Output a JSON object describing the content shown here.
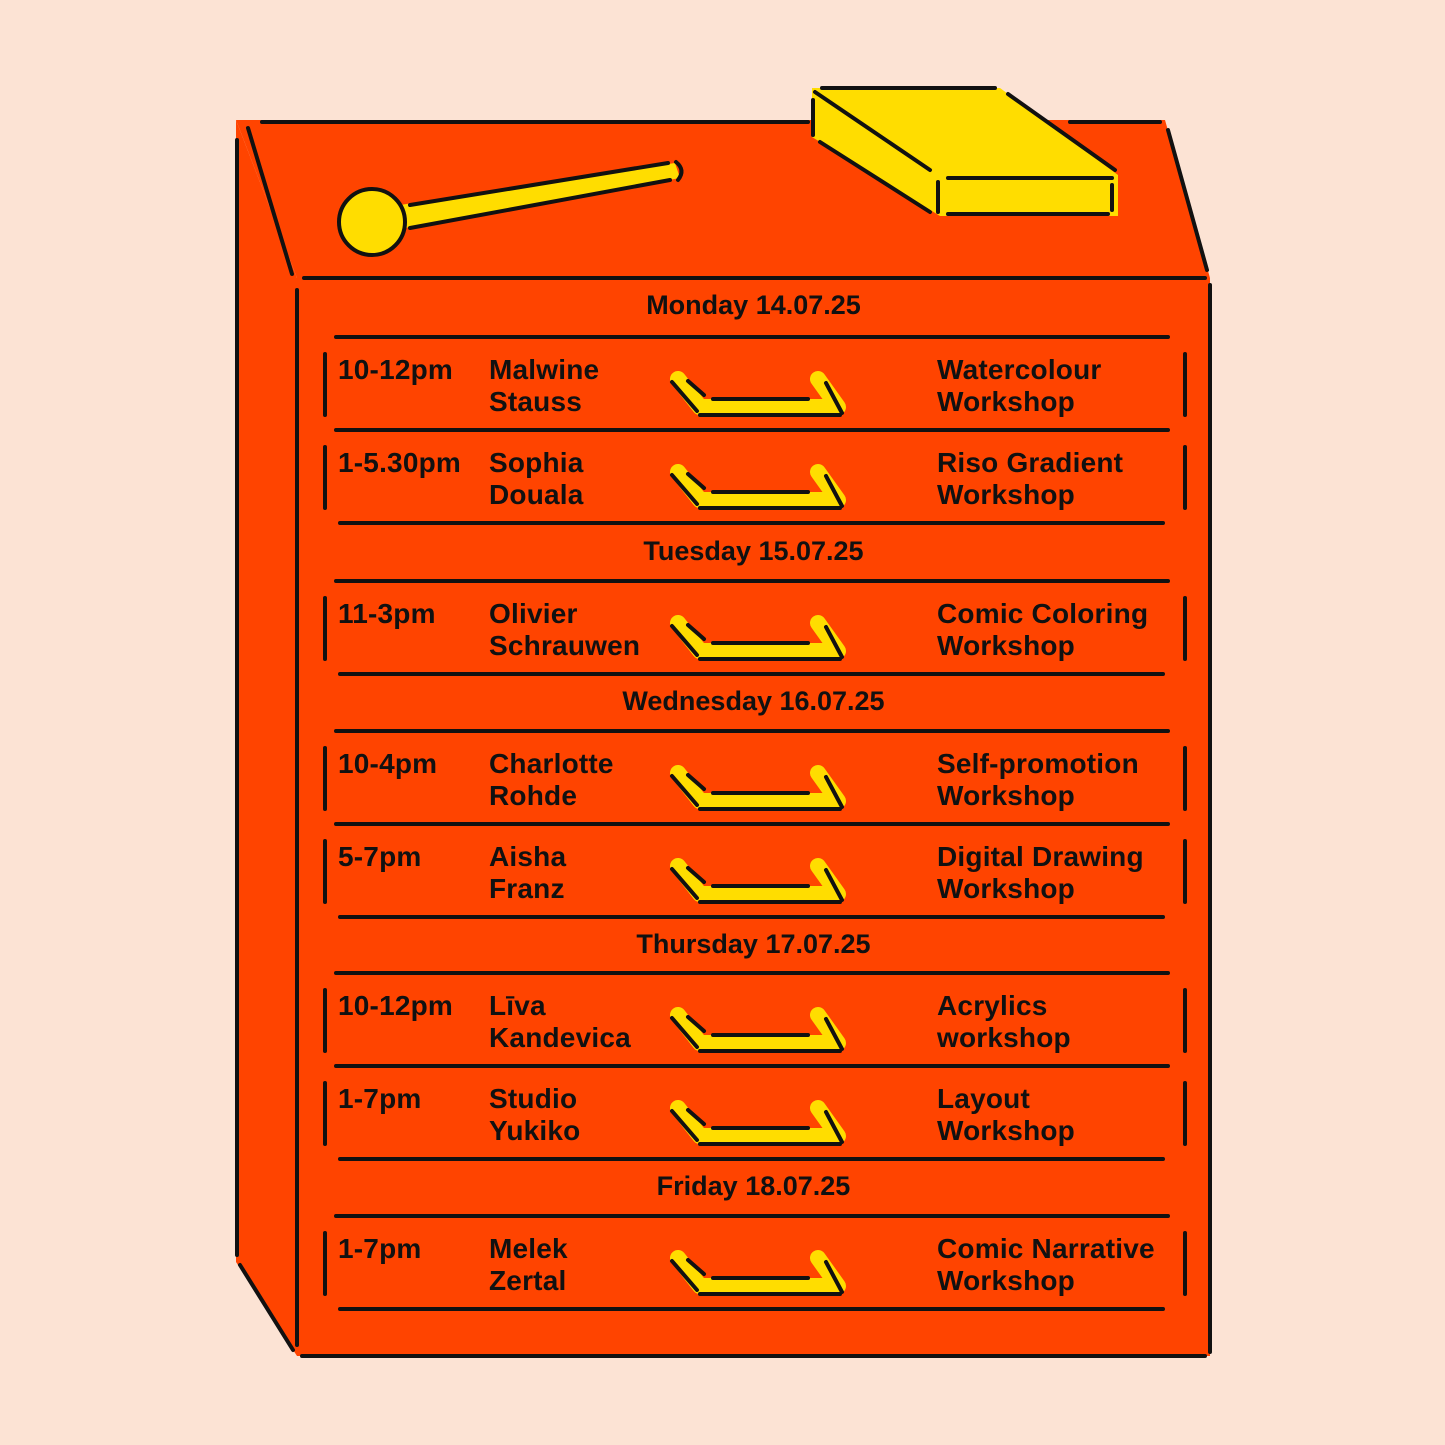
{
  "colors": {
    "background": "#FCE3D4",
    "cabinet": "#FF4400",
    "accent": "#FFDD00",
    "outline": "#111111"
  },
  "icons": [
    "mallet-icon",
    "eraser-block-icon",
    "drawer-handle-icon"
  ],
  "days": [
    {
      "label": "Monday 14.07.25",
      "sessions": [
        {
          "time": "10-12pm",
          "name": [
            "Malwine",
            "Stauss"
          ],
          "title": [
            "Watercolour",
            "Workshop"
          ]
        },
        {
          "time": "1-5.30pm",
          "name": [
            "Sophia",
            "Douala"
          ],
          "title": [
            "Riso Gradient",
            "Workshop"
          ]
        }
      ]
    },
    {
      "label": "Tuesday 15.07.25",
      "sessions": [
        {
          "time": "11-3pm",
          "name": [
            "Olivier",
            "Schrauwen"
          ],
          "title": [
            "Comic Coloring",
            "Workshop"
          ]
        }
      ]
    },
    {
      "label": "Wednesday 16.07.25",
      "sessions": [
        {
          "time": "10-4pm",
          "name": [
            "Charlotte",
            "Rohde"
          ],
          "title": [
            "Self-promotion",
            "Workshop"
          ]
        },
        {
          "time": "5-7pm",
          "name": [
            "Aisha",
            "Franz"
          ],
          "title": [
            "Digital Drawing",
            "Workshop"
          ]
        }
      ]
    },
    {
      "label": "Thursday 17.07.25",
      "sessions": [
        {
          "time": "10-12pm",
          "name": [
            "Līva",
            "Kandevica"
          ],
          "title": [
            "Acrylics",
            "workshop"
          ]
        },
        {
          "time": "1-7pm",
          "name": [
            "Studio",
            "Yukiko"
          ],
          "title": [
            "Layout",
            "Workshop"
          ]
        }
      ]
    },
    {
      "label": "Friday 18.07.25",
      "sessions": [
        {
          "time": "1-7pm",
          "name": [
            "Melek",
            "Zertal"
          ],
          "title": [
            "Comic Narrative",
            "Workshop"
          ]
        }
      ]
    }
  ]
}
